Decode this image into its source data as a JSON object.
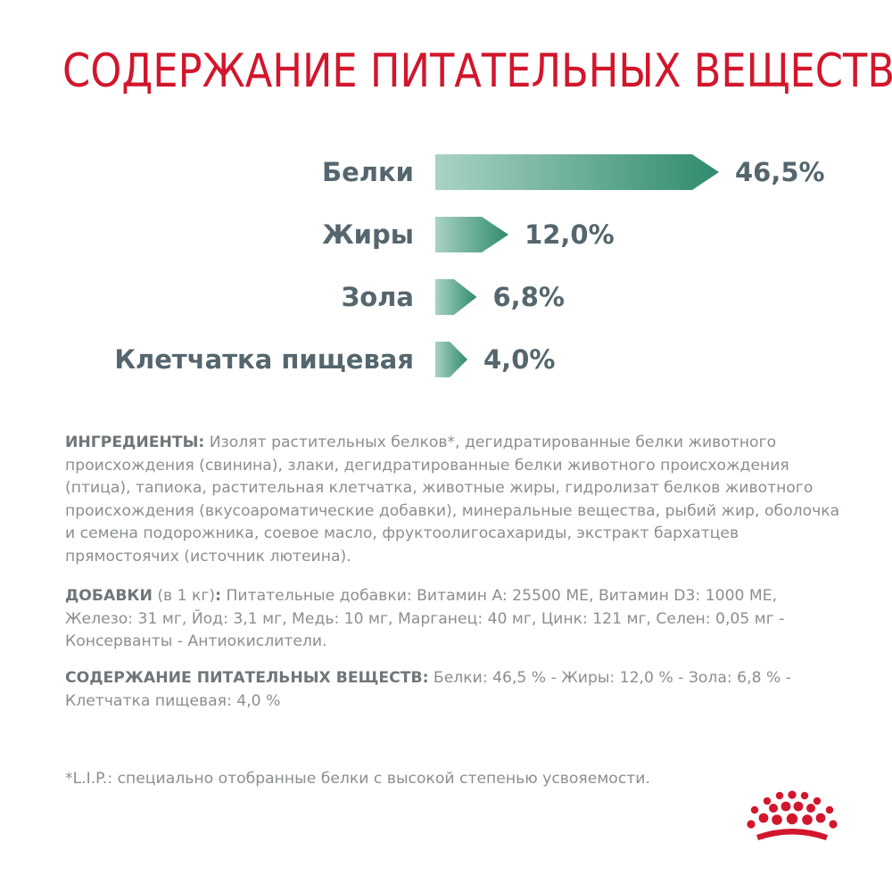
{
  "colors": {
    "title": "#d2162c",
    "label": "#55666e",
    "bar_dark": "#2f8b6e",
    "bar_light": "#a9d3c4",
    "body_text": "#8a8f92",
    "logo": "#d2162c"
  },
  "title": "СОДЕРЖАНИЕ ПИТАТЕЛЬНЫХ ВЕЩЕСТВ",
  "chart_data": {
    "type": "bar",
    "orientation": "horizontal",
    "categories": [
      "Белки",
      "Жиры",
      "Зола",
      "Клетчатка пищевая"
    ],
    "values": [
      46.5,
      12.0,
      6.8,
      4.0
    ],
    "value_labels": [
      "46,5%",
      "12,0%",
      "6,8%",
      "4,0%"
    ],
    "grid": false
  },
  "ingredients": {
    "head": "ИНГРЕДИЕНТЫ:",
    "text": " Изолят растительных белков*, дегидратированные белки животного происхождения (свинина), злаки, дегидратированные белки животного происхождения (птица), тапиока, растительная клетчатка, животные жиры, гидролизат белков животного происхождения (вкусоароматические добавки), минеральные вещества, рыбий жир, оболочка и семена подорожника, соевое масло, фруктоолигосахариды, экстракт бархатцев прямостоячих (источник лютеина)."
  },
  "additives": {
    "head": "ДОБАВКИ",
    "head_note": " (в 1 кг)",
    "head_colon": ":",
    "text": " Питательные добавки: Витамин A: 25500 МЕ, Витамин D3: 1000 МЕ, Железо: 31 мг, Йод: 3,1 мг, Медь: 10 мг, Марганец: 40 мг, Цинк: 121 мг, Селен: 0,05 мг - Консерванты - Антиокислители."
  },
  "nutrients": {
    "head": "СОДЕРЖАНИЕ ПИТАТЕЛЬНЫХ ВЕЩЕСТВ:",
    "text": " Белки: 46,5 % - Жиры: 12,0 % - Зола: 6,8 % - Клетчатка пищевая: 4,0 %"
  },
  "footnote": "*L.I.P.: специально отобранные белки с высокой степенью усвояемости.",
  "logo": {
    "icon": "crown-icon"
  }
}
